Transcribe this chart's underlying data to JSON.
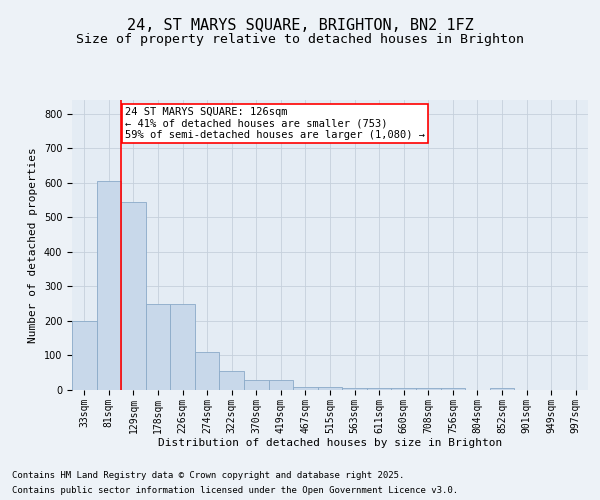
{
  "title1": "24, ST MARYS SQUARE, BRIGHTON, BN2 1FZ",
  "title2": "Size of property relative to detached houses in Brighton",
  "xlabel": "Distribution of detached houses by size in Brighton",
  "ylabel": "Number of detached properties",
  "categories": [
    "33sqm",
    "81sqm",
    "129sqm",
    "178sqm",
    "226sqm",
    "274sqm",
    "322sqm",
    "370sqm",
    "419sqm",
    "467sqm",
    "515sqm",
    "563sqm",
    "611sqm",
    "660sqm",
    "708sqm",
    "756sqm",
    "804sqm",
    "852sqm",
    "901sqm",
    "949sqm",
    "997sqm"
  ],
  "bar_heights": [
    200,
    605,
    545,
    248,
    248,
    110,
    55,
    30,
    30,
    10,
    10,
    5,
    5,
    5,
    5,
    5,
    0,
    5,
    0,
    0,
    0
  ],
  "bar_color": "#c8d8ea",
  "bar_edge_color": "#8aaac8",
  "vline_color": "red",
  "vline_x_idx": 1.5,
  "annotation_text": "24 ST MARYS SQUARE: 126sqm\n← 41% of detached houses are smaller (753)\n59% of semi-detached houses are larger (1,080) →",
  "annotation_box_color": "white",
  "annotation_box_edge": "red",
  "ylim": [
    0,
    840
  ],
  "yticks": [
    0,
    100,
    200,
    300,
    400,
    500,
    600,
    700,
    800
  ],
  "footer1": "Contains HM Land Registry data © Crown copyright and database right 2025.",
  "footer2": "Contains public sector information licensed under the Open Government Licence v3.0.",
  "bg_color": "#edf2f7",
  "plot_bg_color": "#e4ecf4",
  "grid_color": "#c5d0dc",
  "title1_fontsize": 11,
  "title2_fontsize": 9.5,
  "axis_label_fontsize": 8,
  "tick_fontsize": 7,
  "footer_fontsize": 6.5,
  "annotation_fontsize": 7.5
}
